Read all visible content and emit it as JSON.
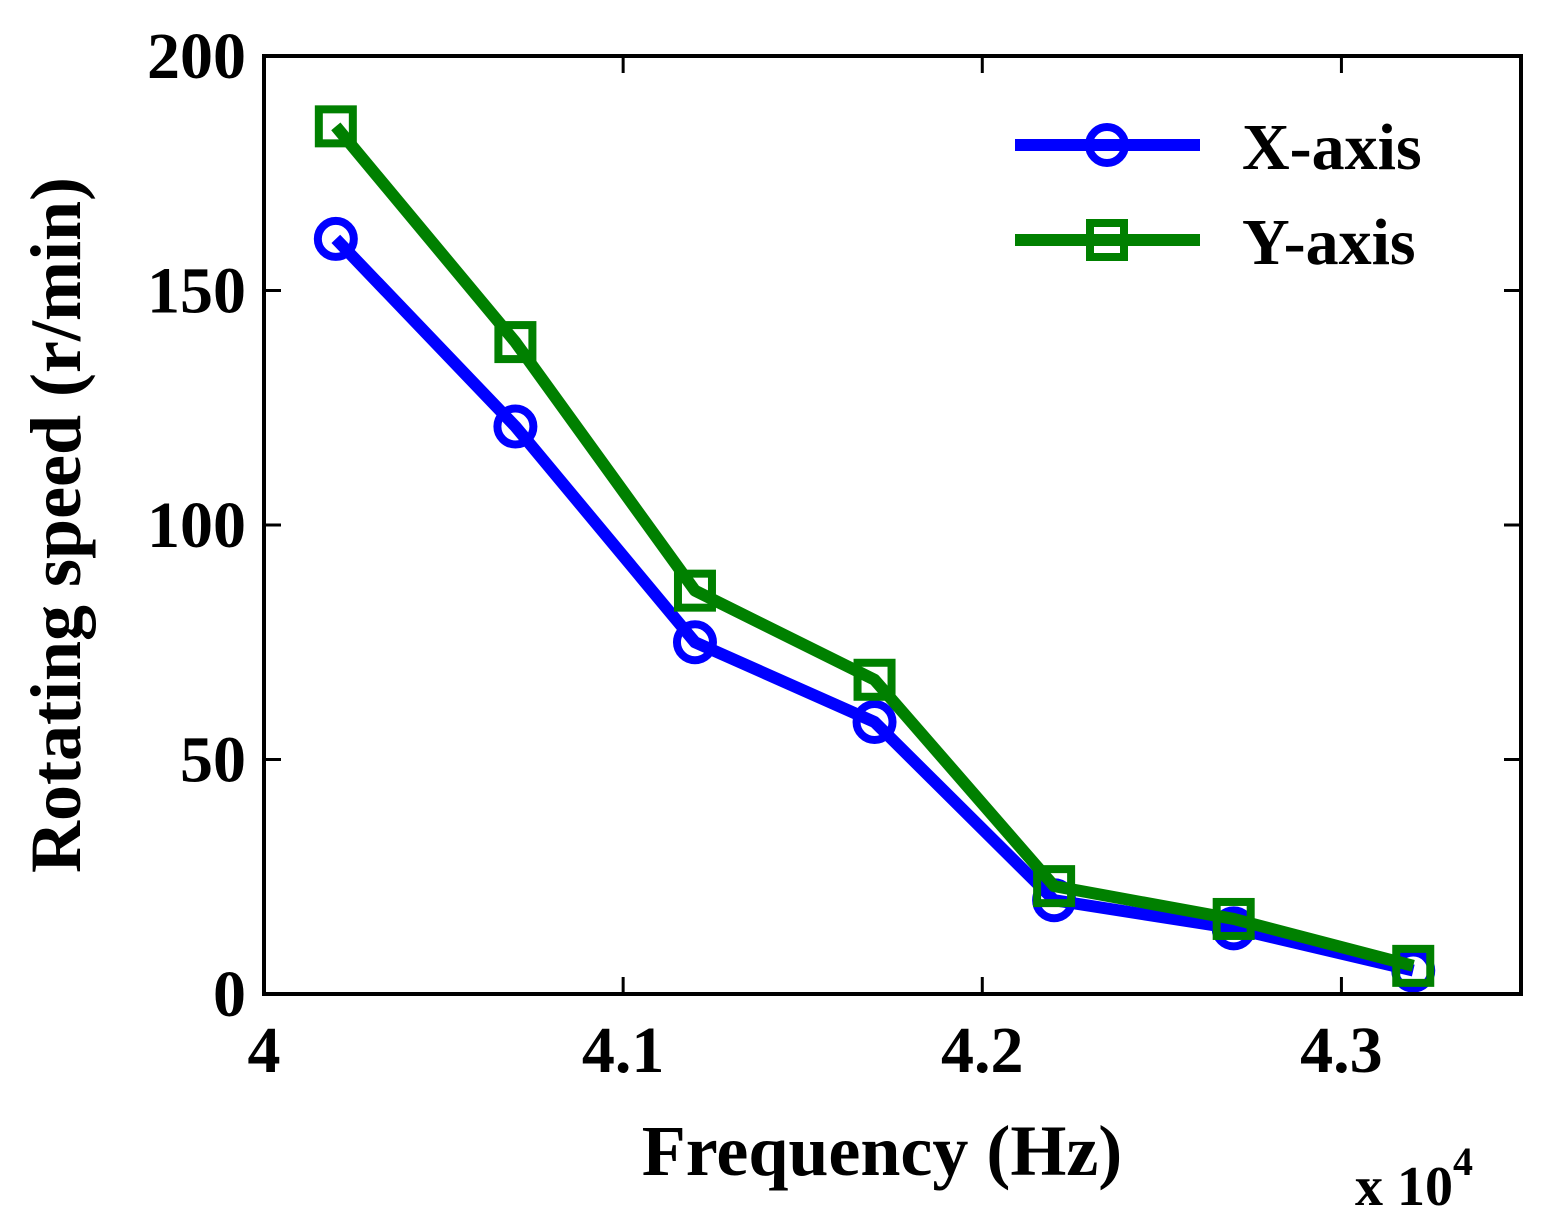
{
  "chart_data": {
    "type": "line",
    "title": "",
    "xlabel": "Frequency (Hz)",
    "ylabel": "Rotating speed (r/min)",
    "x_multiplier_label": {
      "base": "x 10",
      "exponent": "4"
    },
    "x": [
      4.02,
      4.07,
      4.12,
      4.17,
      4.22,
      4.27,
      4.32
    ],
    "xlim": [
      4.0,
      4.35
    ],
    "ylim": [
      0,
      200
    ],
    "xticks": [
      4.0,
      4.1,
      4.2,
      4.3
    ],
    "xtick_labels": [
      "4",
      "4.1",
      "4.2",
      "4.3"
    ],
    "yticks": [
      0,
      50,
      100,
      150,
      200
    ],
    "ytick_labels": [
      "0",
      "50",
      "100",
      "150",
      "200"
    ],
    "grid": false,
    "legend_position": "top-right",
    "series": [
      {
        "name": "X-axis",
        "color": "#0000ff",
        "marker": "circle",
        "values": [
          161,
          121,
          75,
          58,
          20,
          14,
          5
        ]
      },
      {
        "name": "Y-axis",
        "color": "#008000",
        "marker": "square",
        "values": [
          185,
          139,
          86,
          67,
          23,
          16,
          6
        ]
      }
    ]
  }
}
